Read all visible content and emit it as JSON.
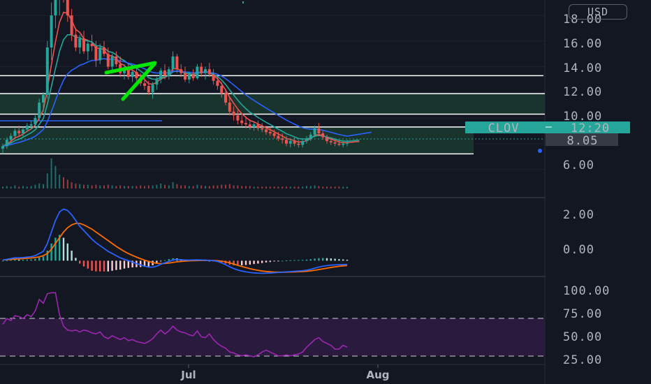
{
  "header": {
    "currency": "USD"
  },
  "colors": {
    "background": "#131722",
    "up": "#26a69a",
    "down": "#ef5350",
    "ema_fast": "#ef5350",
    "ema_mid": "#26a69a",
    "ema_slow": "#2962ff",
    "macd_line": "#2962ff",
    "signal_line": "#ff6d00",
    "rsi": "#9c27b0",
    "rsi_band": "#2a1a3e",
    "annotation": "#00e600",
    "zone": "#1b3a2e"
  },
  "chart_data": [
    {
      "type": "candlestick",
      "panel": "price",
      "symbol": "CLOV",
      "ylim": [
        4.5,
        19.2
      ],
      "y_ticks": [
        "18.00",
        "16.00",
        "14.00",
        "12.00",
        "10.00",
        "6.00"
      ],
      "x_ticks": [
        "Jul",
        "Aug"
      ],
      "last_price_label": "8.05",
      "symbol_tag": {
        "symbol": "CLOV",
        "countdown": "12:20"
      },
      "horizontal_levels": [
        13.3,
        11.9,
        10.3,
        9.3,
        7.2
      ],
      "zones": [
        {
          "from": 10.3,
          "to": 11.9
        },
        {
          "from": 7.2,
          "to": 9.3
        }
      ],
      "candles": [
        [
          7.6,
          8.0,
          7.2,
          7.8
        ],
        [
          7.8,
          8.5,
          7.6,
          8.3
        ],
        [
          8.3,
          8.8,
          8.0,
          8.6
        ],
        [
          8.6,
          9.2,
          8.4,
          9.0
        ],
        [
          9.0,
          9.4,
          8.6,
          8.8
        ],
        [
          8.8,
          9.3,
          8.5,
          9.1
        ],
        [
          9.1,
          9.6,
          8.9,
          9.4
        ],
        [
          9.4,
          9.8,
          9.1,
          9.5
        ],
        [
          9.5,
          10.2,
          9.3,
          10.0
        ],
        [
          10.0,
          11.5,
          9.8,
          11.2
        ],
        [
          11.2,
          12.0,
          10.5,
          11.8
        ],
        [
          11.8,
          16.0,
          11.5,
          15.5
        ],
        [
          15.5,
          19.0,
          14.5,
          18.0
        ],
        [
          18.0,
          21.0,
          17.0,
          19.5
        ],
        [
          19.5,
          22.0,
          18.0,
          20.5
        ],
        [
          20.5,
          22.5,
          19.0,
          19.8
        ],
        [
          19.8,
          20.5,
          17.5,
          18.0
        ],
        [
          18.0,
          18.5,
          16.0,
          16.5
        ],
        [
          16.5,
          17.0,
          15.2,
          15.5
        ],
        [
          15.5,
          16.5,
          15.0,
          16.2
        ],
        [
          16.2,
          16.8,
          15.0,
          15.2
        ],
        [
          15.2,
          16.0,
          14.5,
          15.8
        ],
        [
          15.8,
          16.5,
          15.2,
          15.6
        ],
        [
          15.6,
          16.0,
          14.0,
          14.5
        ],
        [
          14.5,
          15.8,
          14.2,
          15.5
        ],
        [
          15.5,
          16.0,
          14.8,
          15.0
        ],
        [
          15.0,
          15.5,
          13.8,
          14.0
        ],
        [
          14.0,
          15.0,
          13.5,
          14.8
        ],
        [
          14.8,
          15.2,
          14.0,
          14.2
        ],
        [
          14.2,
          14.8,
          13.2,
          13.5
        ],
        [
          13.5,
          14.2,
          13.0,
          13.8
        ],
        [
          13.8,
          14.2,
          13.0,
          13.2
        ],
        [
          13.2,
          13.8,
          12.8,
          13.6
        ],
        [
          13.6,
          14.0,
          12.9,
          13.1
        ],
        [
          13.1,
          13.5,
          12.5,
          12.7
        ],
        [
          12.7,
          13.2,
          12.2,
          12.5
        ],
        [
          12.5,
          12.9,
          11.8,
          12.0
        ],
        [
          12.0,
          12.8,
          11.5,
          12.6
        ],
        [
          12.6,
          13.2,
          12.2,
          13.0
        ],
        [
          13.0,
          13.9,
          12.7,
          13.7
        ],
        [
          13.7,
          14.2,
          13.0,
          13.3
        ],
        [
          13.3,
          14.0,
          13.0,
          13.8
        ],
        [
          13.8,
          15.2,
          13.6,
          14.8
        ],
        [
          14.8,
          15.0,
          13.5,
          13.8
        ],
        [
          13.8,
          14.2,
          13.2,
          13.5
        ],
        [
          13.5,
          14.0,
          12.8,
          13.0
        ],
        [
          13.0,
          13.6,
          12.7,
          13.4
        ],
        [
          13.4,
          13.8,
          12.9,
          13.1
        ],
        [
          13.1,
          14.2,
          13.0,
          14.0
        ],
        [
          14.0,
          14.3,
          13.2,
          13.5
        ],
        [
          13.5,
          14.0,
          13.0,
          13.8
        ],
        [
          13.8,
          14.3,
          13.2,
          13.4
        ],
        [
          13.4,
          13.8,
          12.6,
          12.9
        ],
        [
          12.9,
          13.3,
          12.2,
          12.5
        ],
        [
          12.5,
          12.8,
          11.6,
          11.9
        ],
        [
          11.9,
          12.2,
          11.0,
          11.2
        ],
        [
          11.2,
          11.6,
          10.2,
          10.5
        ],
        [
          10.5,
          10.9,
          9.8,
          10.2
        ],
        [
          10.2,
          10.6,
          9.5,
          9.8
        ],
        [
          9.8,
          10.2,
          9.4,
          9.6
        ],
        [
          9.6,
          10.0,
          9.2,
          9.5
        ],
        [
          9.5,
          9.9,
          9.1,
          9.3
        ],
        [
          9.3,
          9.7,
          9.0,
          9.5
        ],
        [
          9.5,
          9.8,
          9.0,
          9.2
        ],
        [
          9.2,
          9.6,
          8.9,
          9.1
        ],
        [
          9.1,
          9.4,
          8.7,
          8.9
        ],
        [
          8.9,
          9.3,
          8.6,
          8.8
        ],
        [
          8.8,
          9.1,
          8.4,
          8.6
        ],
        [
          8.6,
          8.9,
          8.2,
          8.4
        ],
        [
          8.4,
          8.8,
          8.0,
          8.3
        ],
        [
          8.3,
          8.6,
          7.8,
          8.0
        ],
        [
          8.0,
          8.4,
          7.7,
          8.2
        ],
        [
          8.2,
          8.5,
          7.8,
          8.0
        ],
        [
          8.0,
          8.3,
          7.7,
          7.9
        ],
        [
          7.9,
          8.4,
          7.7,
          8.2
        ],
        [
          8.2,
          8.6,
          8.0,
          8.4
        ],
        [
          8.4,
          8.9,
          8.2,
          8.7
        ],
        [
          8.7,
          9.4,
          8.5,
          9.2
        ],
        [
          9.2,
          9.6,
          8.6,
          8.8
        ],
        [
          8.8,
          9.0,
          8.3,
          8.5
        ],
        [
          8.5,
          8.7,
          8.0,
          8.2
        ],
        [
          8.2,
          8.5,
          7.9,
          8.1
        ],
        [
          8.1,
          8.4,
          7.8,
          8.0
        ],
        [
          8.0,
          8.3,
          7.8,
          7.9
        ],
        [
          7.9,
          8.2,
          7.7,
          8.0
        ],
        [
          8.0,
          8.3,
          7.8,
          8.05
        ]
      ],
      "volume": [
        0.3,
        0.4,
        0.3,
        0.5,
        0.3,
        0.4,
        0.3,
        0.4,
        0.6,
        0.8,
        0.7,
        2.4,
        4.8,
        3.6,
        2.2,
        1.8,
        1.4,
        1.0,
        0.8,
        0.7,
        0.6,
        0.6,
        0.5,
        0.6,
        0.5,
        0.5,
        0.6,
        0.5,
        0.4,
        0.5,
        0.4,
        0.4,
        0.4,
        0.4,
        0.5,
        0.4,
        0.5,
        0.5,
        0.6,
        0.8,
        0.6,
        0.5,
        1.0,
        0.7,
        0.5,
        0.5,
        0.4,
        0.4,
        0.6,
        0.5,
        0.4,
        0.4,
        0.5,
        0.5,
        0.6,
        0.6,
        0.7,
        0.5,
        0.5,
        0.4,
        0.4,
        0.4,
        0.3,
        0.3,
        0.3,
        0.3,
        0.3,
        0.3,
        0.3,
        0.3,
        0.3,
        0.3,
        0.3,
        0.3,
        0.3,
        0.4,
        0.4,
        0.5,
        0.4,
        0.3,
        0.3,
        0.3,
        0.3,
        0.3,
        0.3,
        0.3
      ]
    },
    {
      "type": "macd",
      "panel": "macd",
      "ylim": [
        -1.1,
        4.4
      ],
      "y_ticks": [
        "2.00",
        "0.00"
      ],
      "macd": [
        0.05,
        0.1,
        0.15,
        0.2,
        0.2,
        0.22,
        0.25,
        0.28,
        0.35,
        0.5,
        0.65,
        1.2,
        2.0,
        2.8,
        3.4,
        3.6,
        3.5,
        3.2,
        2.8,
        2.4,
        2.1,
        1.8,
        1.5,
        1.25,
        1.05,
        0.85,
        0.65,
        0.5,
        0.35,
        0.2,
        0.1,
        0.0,
        -0.1,
        -0.2,
        -0.3,
        -0.38,
        -0.45,
        -0.45,
        -0.38,
        -0.25,
        -0.15,
        -0.05,
        0.05,
        0.08,
        0.06,
        0.05,
        0.04,
        0.05,
        0.06,
        0.05,
        0.04,
        0.02,
        0.0,
        -0.05,
        -0.15,
        -0.28,
        -0.42,
        -0.55,
        -0.65,
        -0.72,
        -0.78,
        -0.82,
        -0.85,
        -0.87,
        -0.88,
        -0.87,
        -0.86,
        -0.84,
        -0.82,
        -0.8,
        -0.78,
        -0.76,
        -0.74,
        -0.72,
        -0.7,
        -0.66,
        -0.6,
        -0.52,
        -0.44,
        -0.38,
        -0.34,
        -0.31,
        -0.29,
        -0.28,
        -0.27,
        -0.26
      ],
      "signal": [
        0.05,
        0.07,
        0.09,
        0.11,
        0.13,
        0.15,
        0.17,
        0.19,
        0.22,
        0.27,
        0.35,
        0.5,
        0.8,
        1.2,
        1.6,
        2.0,
        2.3,
        2.5,
        2.6,
        2.6,
        2.5,
        2.35,
        2.2,
        2.0,
        1.8,
        1.6,
        1.4,
        1.2,
        1.0,
        0.82,
        0.65,
        0.5,
        0.37,
        0.25,
        0.14,
        0.04,
        -0.05,
        -0.13,
        -0.18,
        -0.2,
        -0.19,
        -0.16,
        -0.12,
        -0.08,
        -0.05,
        -0.03,
        -0.01,
        0.0,
        0.01,
        0.02,
        0.02,
        0.02,
        0.01,
        0.0,
        -0.03,
        -0.08,
        -0.15,
        -0.23,
        -0.32,
        -0.4,
        -0.48,
        -0.55,
        -0.62,
        -0.67,
        -0.72,
        -0.75,
        -0.77,
        -0.79,
        -0.8,
        -0.8,
        -0.8,
        -0.79,
        -0.78,
        -0.77,
        -0.76,
        -0.74,
        -0.71,
        -0.67,
        -0.62,
        -0.57,
        -0.52,
        -0.47,
        -0.43,
        -0.39,
        -0.36,
        -0.33
      ]
    },
    {
      "type": "line",
      "panel": "rsi",
      "ylim": [
        20,
        112
      ],
      "y_ticks": [
        "100.00",
        "75.00",
        "50.00",
        "25.00"
      ],
      "bands": [
        70,
        30
      ],
      "values": [
        62,
        68,
        66,
        71,
        70,
        68,
        72,
        70,
        76,
        88,
        84,
        94,
        95,
        95,
        72,
        60,
        56,
        55,
        56,
        54,
        56,
        55,
        53,
        52,
        54,
        49,
        47,
        50,
        48,
        46,
        48,
        45,
        46,
        44,
        43,
        42,
        44,
        47,
        52,
        56,
        52,
        55,
        60,
        56,
        54,
        53,
        51,
        50,
        55,
        49,
        48,
        52,
        46,
        42,
        39,
        37,
        33,
        32,
        30,
        29,
        30,
        29,
        28,
        30,
        33,
        35,
        33,
        31,
        29,
        29,
        30,
        29,
        30,
        31,
        33,
        38,
        42,
        46,
        48,
        44,
        42,
        40,
        36,
        36,
        40,
        38
      ]
    }
  ]
}
